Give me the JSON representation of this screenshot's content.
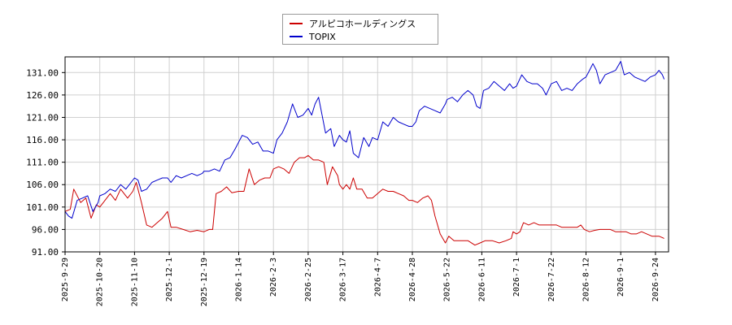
{
  "chart_data": {
    "type": "line",
    "title": "",
    "xlabel": "",
    "ylabel": "",
    "ylim": [
      91.0,
      134.5
    ],
    "grid": true,
    "legend_position": "top-center",
    "y_ticks": [
      "91.00",
      "96.00",
      "101.00",
      "106.00",
      "111.00",
      "116.00",
      "121.00",
      "126.00",
      "131.00"
    ],
    "x_ticks": [
      "2025-9-29",
      "2025-10-20",
      "2025-11-10",
      "2025-12-1",
      "2025-12-19",
      "2026-1-14",
      "2026-2-3",
      "2026-2-25",
      "2026-3-17",
      "2026-4-7",
      "2026-4-28",
      "2026-5-22",
      "2026-6-11",
      "2026-7-1",
      "2026-7-22",
      "2026-8-12",
      "2026-9-1",
      "2026-9-24"
    ],
    "series": [
      {
        "name": "アルピコホールディングス",
        "color": "#cc0000",
        "points": [
          [
            0,
            100
          ],
          [
            0.15,
            100.5
          ],
          [
            0.25,
            105
          ],
          [
            0.45,
            102
          ],
          [
            0.6,
            103
          ],
          [
            0.75,
            98.5
          ],
          [
            0.9,
            101.5
          ],
          [
            1.0,
            101
          ],
          [
            1.15,
            102.5
          ],
          [
            1.3,
            104
          ],
          [
            1.45,
            102.5
          ],
          [
            1.6,
            105
          ],
          [
            1.8,
            103
          ],
          [
            1.95,
            104.5
          ],
          [
            2.05,
            106.5
          ],
          [
            2.2,
            102
          ],
          [
            2.35,
            97
          ],
          [
            2.5,
            96.5
          ],
          [
            2.65,
            97.5
          ],
          [
            2.8,
            98.5
          ],
          [
            2.95,
            100
          ],
          [
            3.05,
            96.5
          ],
          [
            3.2,
            96.5
          ],
          [
            3.4,
            96
          ],
          [
            3.6,
            95.5
          ],
          [
            3.8,
            95.8
          ],
          [
            4.0,
            95.5
          ],
          [
            4.15,
            96
          ],
          [
            4.25,
            96
          ],
          [
            4.35,
            104
          ],
          [
            4.5,
            104.5
          ],
          [
            4.65,
            105.5
          ],
          [
            4.8,
            104.2
          ],
          [
            5.0,
            104.5
          ],
          [
            5.15,
            104.5
          ],
          [
            5.3,
            109.5
          ],
          [
            5.45,
            106
          ],
          [
            5.6,
            107
          ],
          [
            5.75,
            107.5
          ],
          [
            5.9,
            107.5
          ],
          [
            6.0,
            109.5
          ],
          [
            6.15,
            110
          ],
          [
            6.3,
            109.5
          ],
          [
            6.45,
            108.5
          ],
          [
            6.6,
            111
          ],
          [
            6.75,
            112
          ],
          [
            6.9,
            112
          ],
          [
            7.0,
            112.5
          ],
          [
            7.15,
            111.5
          ],
          [
            7.3,
            111.5
          ],
          [
            7.45,
            111
          ],
          [
            7.55,
            106
          ],
          [
            7.7,
            110
          ],
          [
            7.85,
            108
          ],
          [
            7.9,
            106
          ],
          [
            8.0,
            105
          ],
          [
            8.1,
            106
          ],
          [
            8.2,
            105
          ],
          [
            8.3,
            107.5
          ],
          [
            8.4,
            105
          ],
          [
            8.55,
            105
          ],
          [
            8.7,
            103
          ],
          [
            8.85,
            103
          ],
          [
            9.0,
            104
          ],
          [
            9.15,
            105
          ],
          [
            9.3,
            104.5
          ],
          [
            9.45,
            104.5
          ],
          [
            9.6,
            104
          ],
          [
            9.75,
            103.5
          ],
          [
            9.9,
            102.5
          ],
          [
            10.0,
            102.5
          ],
          [
            10.15,
            102
          ],
          [
            10.3,
            103
          ],
          [
            10.45,
            103.5
          ],
          [
            10.55,
            102.5
          ],
          [
            10.65,
            99
          ],
          [
            10.8,
            95
          ],
          [
            10.95,
            93
          ],
          [
            11.05,
            94.5
          ],
          [
            11.2,
            93.5
          ],
          [
            11.4,
            93.5
          ],
          [
            11.6,
            93.5
          ],
          [
            11.8,
            92.5
          ],
          [
            11.95,
            93
          ],
          [
            12.1,
            93.5
          ],
          [
            12.3,
            93.5
          ],
          [
            12.5,
            93
          ],
          [
            12.7,
            93.5
          ],
          [
            12.85,
            94
          ],
          [
            12.9,
            95.5
          ],
          [
            13.0,
            95
          ],
          [
            13.1,
            95.5
          ],
          [
            13.2,
            97.5
          ],
          [
            13.35,
            97
          ],
          [
            13.5,
            97.5
          ],
          [
            13.65,
            97
          ],
          [
            13.8,
            97
          ],
          [
            14.0,
            97
          ],
          [
            14.15,
            97
          ],
          [
            14.3,
            96.5
          ],
          [
            14.45,
            96.5
          ],
          [
            14.6,
            96.5
          ],
          [
            14.75,
            96.5
          ],
          [
            14.85,
            97
          ],
          [
            14.95,
            96
          ],
          [
            15.1,
            95.5
          ],
          [
            15.25,
            95.8
          ],
          [
            15.4,
            96
          ],
          [
            15.55,
            96
          ],
          [
            15.7,
            96
          ],
          [
            15.85,
            95.5
          ],
          [
            16.0,
            95.5
          ],
          [
            16.15,
            95.5
          ],
          [
            16.3,
            95
          ],
          [
            16.45,
            95
          ],
          [
            16.6,
            95.5
          ],
          [
            16.75,
            95
          ],
          [
            16.9,
            94.5
          ],
          [
            17.0,
            94.5
          ],
          [
            17.1,
            94.5
          ],
          [
            17.25,
            94
          ]
        ]
      },
      {
        "name": "TOPIX",
        "color": "#0000cc",
        "points": [
          [
            0,
            100
          ],
          [
            0.1,
            99
          ],
          [
            0.2,
            98.5
          ],
          [
            0.35,
            102.5
          ],
          [
            0.5,
            103
          ],
          [
            0.65,
            103.5
          ],
          [
            0.8,
            100
          ],
          [
            0.95,
            102
          ],
          [
            1.0,
            103.5
          ],
          [
            1.15,
            104
          ],
          [
            1.3,
            105
          ],
          [
            1.45,
            104.5
          ],
          [
            1.6,
            106
          ],
          [
            1.75,
            105
          ],
          [
            1.9,
            106.5
          ],
          [
            2.0,
            107.5
          ],
          [
            2.1,
            107
          ],
          [
            2.2,
            104.5
          ],
          [
            2.35,
            105
          ],
          [
            2.5,
            106.5
          ],
          [
            2.65,
            107
          ],
          [
            2.8,
            107.5
          ],
          [
            2.95,
            107.5
          ],
          [
            3.05,
            106.5
          ],
          [
            3.2,
            108
          ],
          [
            3.35,
            107.5
          ],
          [
            3.5,
            108
          ],
          [
            3.65,
            108.5
          ],
          [
            3.8,
            108
          ],
          [
            3.95,
            108.5
          ],
          [
            4.0,
            109
          ],
          [
            4.15,
            109
          ],
          [
            4.3,
            109.5
          ],
          [
            4.45,
            109
          ],
          [
            4.6,
            111.5
          ],
          [
            4.75,
            112
          ],
          [
            4.9,
            114
          ],
          [
            5.0,
            115.5
          ],
          [
            5.1,
            117
          ],
          [
            5.25,
            116.5
          ],
          [
            5.4,
            115
          ],
          [
            5.55,
            115.5
          ],
          [
            5.7,
            113.5
          ],
          [
            5.85,
            113.5
          ],
          [
            6.0,
            113
          ],
          [
            6.1,
            116
          ],
          [
            6.25,
            117.5
          ],
          [
            6.4,
            120
          ],
          [
            6.55,
            124
          ],
          [
            6.7,
            121
          ],
          [
            6.85,
            121.5
          ],
          [
            7.0,
            123
          ],
          [
            7.1,
            121.5
          ],
          [
            7.2,
            124
          ],
          [
            7.3,
            125.5
          ],
          [
            7.4,
            121.5
          ],
          [
            7.5,
            117.5
          ],
          [
            7.65,
            118.5
          ],
          [
            7.75,
            114.5
          ],
          [
            7.9,
            117
          ],
          [
            8.0,
            116
          ],
          [
            8.1,
            115.5
          ],
          [
            8.2,
            118
          ],
          [
            8.3,
            113
          ],
          [
            8.45,
            112
          ],
          [
            8.6,
            116.5
          ],
          [
            8.75,
            114.5
          ],
          [
            8.85,
            116.5
          ],
          [
            9.0,
            116
          ],
          [
            9.15,
            120
          ],
          [
            9.3,
            119
          ],
          [
            9.45,
            121
          ],
          [
            9.6,
            120
          ],
          [
            9.75,
            119.5
          ],
          [
            9.9,
            119
          ],
          [
            10.0,
            119
          ],
          [
            10.1,
            120
          ],
          [
            10.2,
            122.5
          ],
          [
            10.35,
            123.5
          ],
          [
            10.5,
            123
          ],
          [
            10.65,
            122.5
          ],
          [
            10.8,
            122
          ],
          [
            10.95,
            124
          ],
          [
            11.0,
            125
          ],
          [
            11.15,
            125.5
          ],
          [
            11.3,
            124.5
          ],
          [
            11.45,
            126
          ],
          [
            11.6,
            127
          ],
          [
            11.75,
            126
          ],
          [
            11.85,
            123.5
          ],
          [
            11.95,
            123
          ],
          [
            12.05,
            127
          ],
          [
            12.2,
            127.5
          ],
          [
            12.35,
            129
          ],
          [
            12.5,
            128
          ],
          [
            12.65,
            127
          ],
          [
            12.8,
            128.5
          ],
          [
            12.9,
            127.5
          ],
          [
            13.0,
            128
          ],
          [
            13.15,
            130.5
          ],
          [
            13.3,
            129
          ],
          [
            13.45,
            128.5
          ],
          [
            13.6,
            128.5
          ],
          [
            13.75,
            127.5
          ],
          [
            13.85,
            126
          ],
          [
            14.0,
            128.5
          ],
          [
            14.15,
            129
          ],
          [
            14.3,
            127
          ],
          [
            14.45,
            127.5
          ],
          [
            14.6,
            127
          ],
          [
            14.75,
            128.5
          ],
          [
            14.9,
            129.5
          ],
          [
            15.0,
            130
          ],
          [
            15.1,
            131.5
          ],
          [
            15.2,
            133
          ],
          [
            15.3,
            131.5
          ],
          [
            15.4,
            128.5
          ],
          [
            15.55,
            130.5
          ],
          [
            15.7,
            131
          ],
          [
            15.85,
            131.5
          ],
          [
            16.0,
            133.5
          ],
          [
            16.1,
            130.5
          ],
          [
            16.25,
            131
          ],
          [
            16.4,
            130
          ],
          [
            16.55,
            129.5
          ],
          [
            16.7,
            129
          ],
          [
            16.85,
            130
          ],
          [
            17.0,
            130.5
          ],
          [
            17.1,
            131.5
          ],
          [
            17.2,
            130.5
          ],
          [
            17.25,
            129.5
          ]
        ]
      }
    ]
  }
}
